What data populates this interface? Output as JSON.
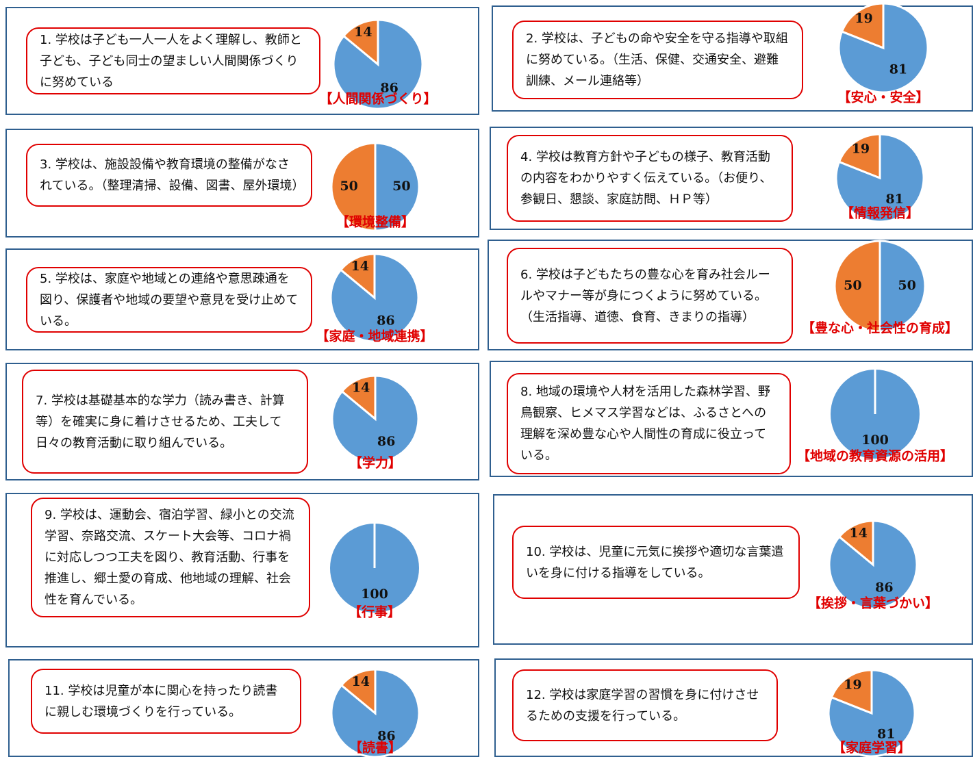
{
  "chart_data": [
    {
      "type": "pie",
      "question": "1. 学校は子ども一人一人をよく理解し、教師と子ども、子ども同士の望ましい人間関係づくりに努めている",
      "title": "【人間関係づくり】",
      "values": [
        86,
        14
      ],
      "colors": [
        "#5b9bd5",
        "#ed7d31"
      ]
    },
    {
      "type": "pie",
      "question": "2. 学校は、子どもの命や安全を守る指導や取組に努めている。（生活、保健、交通安全、避難訓練、メール連絡等）",
      "title": "【安心・安全】",
      "values": [
        81,
        19
      ],
      "colors": [
        "#5b9bd5",
        "#ed7d31"
      ]
    },
    {
      "type": "pie",
      "question": "3. 学校は、施設設備や教育環境の整備がなされている。（整理清掃、設備、図書、屋外環境）",
      "title": "【環境整備】",
      "values": [
        50,
        50
      ],
      "colors": [
        "#5b9bd5",
        "#ed7d31"
      ]
    },
    {
      "type": "pie",
      "question": "4. 学校は教育方針や子どもの様子、教育活動の内容をわかりやすく伝えている。（お便り、参観日、懇談、家庭訪問、ＨＰ等）",
      "title": "【情報発信】",
      "values": [
        81,
        19
      ],
      "colors": [
        "#5b9bd5",
        "#ed7d31"
      ]
    },
    {
      "type": "pie",
      "question": "5. 学校は、家庭や地域との連絡や意思疎通を図り、保護者や地域の要望や意見を受け止めている。",
      "title": "【家庭・地域連携】",
      "values": [
        86,
        14
      ],
      "colors": [
        "#5b9bd5",
        "#ed7d31"
      ]
    },
    {
      "type": "pie",
      "question": "6. 学校は子どもたちの豊な心を育み社会ルールやマナー等が身につくように努めている。（生活指導、道徳、食育、きまりの指導）",
      "title": "【豊な心・社会性の育成】",
      "values": [
        50,
        50
      ],
      "colors": [
        "#5b9bd5",
        "#ed7d31"
      ]
    },
    {
      "type": "pie",
      "question": "7. 学校は基礎基本的な学力（読み書き、計算等）を確実に身に着けさせるため、工夫して日々の教育活動に取り組んでいる。",
      "title": "【学力】",
      "values": [
        86,
        14
      ],
      "colors": [
        "#5b9bd5",
        "#ed7d31"
      ]
    },
    {
      "type": "pie",
      "question": "8. 地域の環境や人材を活用した森林学習、野鳥観察、ヒメマス学習などは、ふるさとへの理解を深め豊な心や人間性の育成に役立っている。",
      "title": "【地域の教育資源の活用】",
      "values": [
        100
      ],
      "colors": [
        "#5b9bd5"
      ]
    },
    {
      "type": "pie",
      "question": "9. 学校は、運動会、宿泊学習、緑小との交流学習、奈路交流、スケート大会等、コロナ禍に対応しつつ工夫を図り、教育活動、行事を推進し、郷土愛の育成、他地域の理解、社会性を育んでいる。",
      "title": "【行事】",
      "values": [
        100
      ],
      "colors": [
        "#5b9bd5"
      ]
    },
    {
      "type": "pie",
      "question": "10. 学校は、児童に元気に挨拶や適切な言葉遣いを身に付ける指導をしている。",
      "title": "【挨拶・言葉づかい】",
      "values": [
        86,
        14
      ],
      "colors": [
        "#5b9bd5",
        "#ed7d31"
      ]
    },
    {
      "type": "pie",
      "question": "11. 学校は児童が本に関心を持ったり読書に親しむ環境づくりを行っている。",
      "title": "【読書】",
      "values": [
        86,
        14
      ],
      "colors": [
        "#5b9bd5",
        "#ed7d31"
      ]
    },
    {
      "type": "pie",
      "question": "12. 学校は家庭学習の習慣を身に付けさせるための支援を行っている。",
      "title": "【家庭学習】",
      "values": [
        81,
        19
      ],
      "colors": [
        "#5b9bd5",
        "#ed7d31"
      ]
    }
  ]
}
